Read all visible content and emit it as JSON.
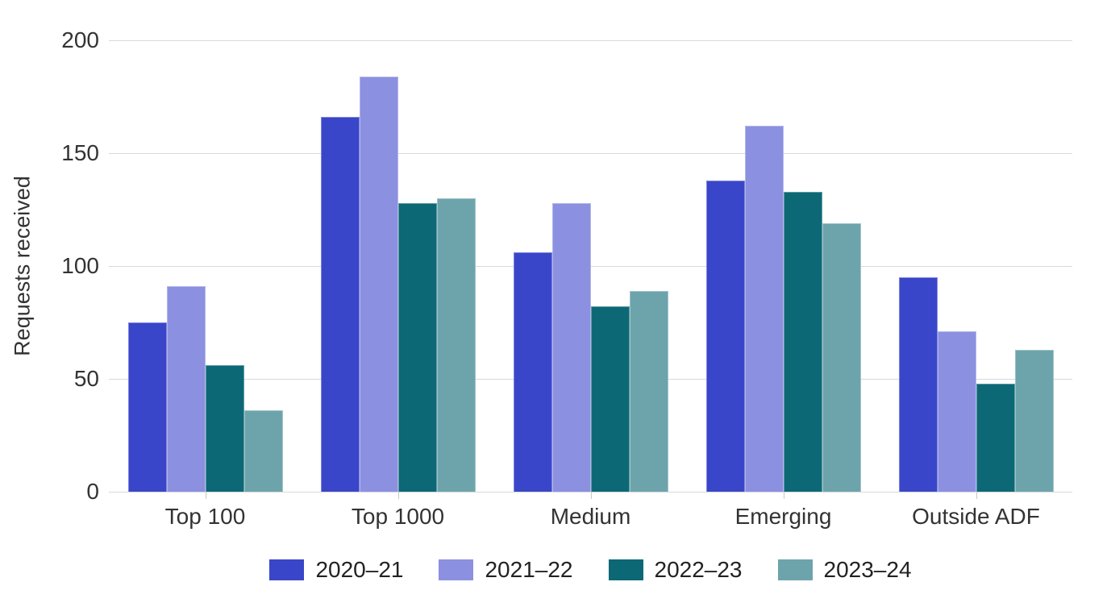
{
  "chart_data": {
    "type": "bar",
    "title": "",
    "xlabel": "",
    "ylabel": "Requests received",
    "ylim": [
      0,
      200
    ],
    "yticks": [
      0,
      50,
      100,
      150,
      200
    ],
    "grid": true,
    "legend_position": "bottom",
    "categories": [
      "Top 100",
      "Top 1000",
      "Medium",
      "Emerging",
      "Outside ADF"
    ],
    "series": [
      {
        "name": "2020–21",
        "color": "#3A46C9",
        "values": [
          75,
          166,
          106,
          138,
          95
        ]
      },
      {
        "name": "2021–22",
        "color": "#8B90E0",
        "values": [
          91,
          184,
          128,
          162,
          71
        ]
      },
      {
        "name": "2022–23",
        "color": "#0D6876",
        "values": [
          56,
          128,
          82,
          133,
          48
        ]
      },
      {
        "name": "2023–24",
        "color": "#6DA4AC",
        "values": [
          36,
          130,
          89,
          119,
          63
        ]
      }
    ],
    "colors": {
      "gridline": "#d9d9d9",
      "tick": "#c9c9c9",
      "text": "#333333"
    }
  }
}
